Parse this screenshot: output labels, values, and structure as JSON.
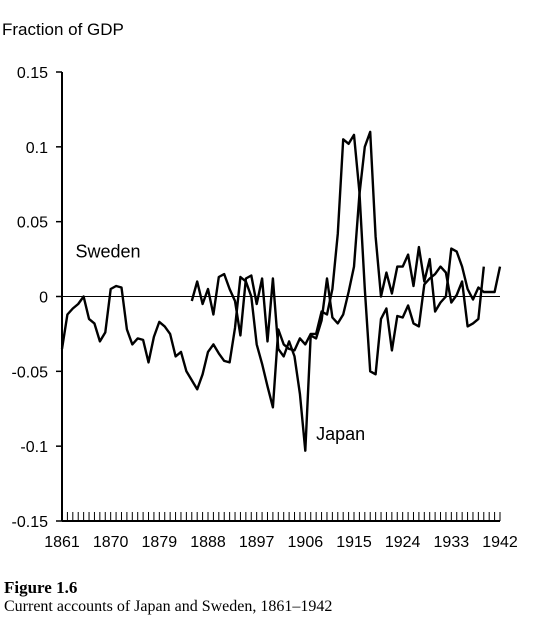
{
  "figure": {
    "title": "Figure 1.6",
    "caption": "Current accounts of Japan and Sweden, 1861–1942"
  },
  "chart_data": {
    "type": "line",
    "ylabel": "Fraction of GDP",
    "xlabel": "",
    "ylim": [
      -0.15,
      0.15
    ],
    "xlim": [
      1861,
      1942
    ],
    "y_ticks": [
      "0.15",
      "0.1",
      "0.05",
      "0",
      "-0.05",
      "-0.1",
      "-0.15"
    ],
    "y_tick_values": [
      0.15,
      0.1,
      0.05,
      0,
      -0.05,
      -0.1,
      -0.15
    ],
    "x_ticks": [
      "1861",
      "1870",
      "1879",
      "1888",
      "1897",
      "1906",
      "1915",
      "1924",
      "1933",
      "1942"
    ],
    "x_tick_values": [
      1861,
      1870,
      1879,
      1888,
      1897,
      1906,
      1915,
      1924,
      1933,
      1942
    ],
    "zero_line": true,
    "grid": false,
    "series": [
      {
        "name": "Sweden",
        "x": [
          1861,
          1862,
          1863,
          1864,
          1865,
          1866,
          1867,
          1868,
          1869,
          1870,
          1871,
          1872,
          1873,
          1874,
          1875,
          1876,
          1877,
          1878,
          1879,
          1880,
          1881,
          1882,
          1883,
          1884,
          1885,
          1886,
          1887,
          1888,
          1889,
          1890,
          1891,
          1892,
          1893,
          1894,
          1895,
          1896,
          1897,
          1898,
          1899,
          1900,
          1901,
          1902,
          1903,
          1904,
          1905,
          1906,
          1907,
          1908,
          1909,
          1910,
          1911,
          1912,
          1913,
          1914,
          1915,
          1916,
          1917,
          1918,
          1919,
          1920,
          1921,
          1922,
          1923,
          1924,
          1925,
          1926,
          1927,
          1928,
          1929,
          1930,
          1931,
          1932,
          1933,
          1934,
          1935,
          1936,
          1937,
          1938,
          1939
        ],
        "values": [
          -0.035,
          -0.012,
          -0.008,
          -0.005,
          0.0,
          -0.015,
          -0.018,
          -0.03,
          -0.024,
          0.005,
          0.007,
          0.006,
          -0.022,
          -0.032,
          -0.028,
          -0.029,
          -0.044,
          -0.027,
          -0.017,
          -0.02,
          -0.025,
          -0.04,
          -0.037,
          -0.05,
          -0.056,
          -0.062,
          -0.052,
          -0.037,
          -0.032,
          -0.038,
          -0.043,
          -0.044,
          -0.021,
          0.013,
          0.01,
          0.0,
          -0.032,
          -0.045,
          -0.06,
          -0.074,
          -0.022,
          -0.032,
          -0.035,
          -0.036,
          -0.028,
          -0.032,
          -0.025,
          -0.025,
          -0.01,
          -0.012,
          0.005,
          0.042,
          0.105,
          0.102,
          0.108,
          0.07,
          0.005,
          -0.05,
          -0.052,
          -0.015,
          -0.008,
          -0.036,
          -0.013,
          -0.014,
          -0.006,
          -0.018,
          -0.02,
          0.008,
          0.012,
          0.015,
          0.02,
          0.016,
          -0.004,
          0.001,
          0.01,
          -0.02,
          -0.018,
          -0.015,
          0.02
        ]
      },
      {
        "name": "Japan",
        "x": [
          1885,
          1886,
          1887,
          1888,
          1889,
          1890,
          1891,
          1892,
          1893,
          1894,
          1895,
          1896,
          1897,
          1898,
          1899,
          1900,
          1901,
          1902,
          1903,
          1904,
          1905,
          1906,
          1907,
          1908,
          1909,
          1910,
          1911,
          1912,
          1913,
          1914,
          1915,
          1916,
          1917,
          1918,
          1919,
          1920,
          1921,
          1922,
          1923,
          1924,
          1925,
          1926,
          1927,
          1928,
          1929,
          1930,
          1931,
          1932,
          1933,
          1934,
          1935,
          1936,
          1937,
          1938,
          1939,
          1940,
          1941,
          1942
        ],
        "values": [
          -0.003,
          0.01,
          -0.005,
          0.005,
          -0.012,
          0.013,
          0.015,
          0.005,
          -0.003,
          -0.026,
          0.012,
          0.014,
          -0.005,
          0.012,
          -0.03,
          0.012,
          -0.035,
          -0.04,
          -0.03,
          -0.04,
          -0.065,
          -0.103,
          -0.026,
          -0.028,
          -0.016,
          0.012,
          -0.014,
          -0.018,
          -0.012,
          0.003,
          0.02,
          0.068,
          0.1,
          0.11,
          0.04,
          0.0,
          0.016,
          0.002,
          0.02,
          0.02,
          0.028,
          0.007,
          0.033,
          0.01,
          0.025,
          -0.01,
          -0.004,
          0.0,
          0.032,
          0.03,
          0.02,
          0.005,
          -0.002,
          0.006,
          0.003,
          0.003,
          0.003,
          0.02
        ]
      }
    ],
    "annotations": [
      {
        "text": "Sweden",
        "x": 1863.5,
        "y": 0.026
      },
      {
        "text": "Japan",
        "x": 1908,
        "y": -0.096
      }
    ]
  }
}
